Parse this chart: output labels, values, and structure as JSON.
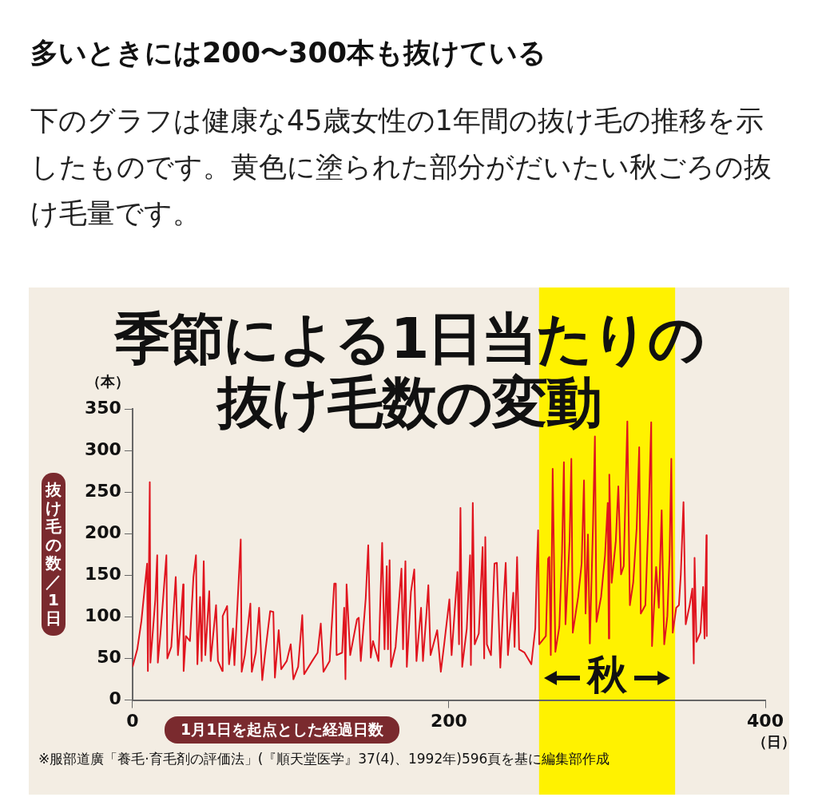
{
  "chart_data": {
    "type": "line",
    "title": "季節による1日当たりの抜け毛数の変動",
    "xlabel": "1月1日を起点とした経過日数",
    "ylabel": "抜け毛の数／1日",
    "annotations": [
      "多いときには200〜300本も抜けている",
      "下のグラフは健康な45歳女性の1年間の抜け毛の推移を示したものです。黄色に塗られた部分がだいたい秋ごろの抜け毛量です。",
      "（本）",
      "（日）",
      "※服部道廣「養毛·育毛剤の評価法」(『順天堂医学』37(4)、1992年)596頁を基に編集部作成"
    ],
    "xlim": [
      0,
      400
    ],
    "xticks": [
      0,
      200,
      400
    ],
    "ylim": [
      0,
      350
    ],
    "yticks": [
      0,
      50,
      100,
      150,
      200,
      250,
      300,
      350
    ],
    "grid": false,
    "legend": false,
    "marker": "none",
    "line_style": "solid",
    "bands": [
      {
        "axis": "x",
        "from": 257,
        "to": 343,
        "label": "秋",
        "color": "#fff200"
      }
    ],
    "x": [
      0,
      3,
      5.6,
      9.2,
      9.7,
      10.9,
      11.3,
      14.4,
      15.6,
      16,
      17.7,
      21.4,
      22,
      24.5,
      25.7,
      27.3,
      28.7,
      30.4,
      32,
      32.3,
      33.7,
      36.3,
      38.5,
      40.1,
      41,
      42.7,
      43.7,
      45,
      46,
      48.5,
      49.4,
      52.8,
      54,
      56.7,
      57,
      59.8,
      61,
      63.5,
      64.4,
      66.5,
      68.4,
      69,
      71,
      74.5,
      75.4,
      77.9,
      80,
      82,
      83.7,
      87,
      89,
      90,
      92.4,
      94,
      97.5,
      100,
      101.7,
      104.7,
      107.3,
      108.5,
      113.6,
      117,
      119,
      120.7,
      124.6,
      127.5,
      128.5,
      129,
      132.5,
      133.8,
      134.6,
      135.3,
      137.6,
      141.9,
      143,
      144.3,
      147.4,
      149,
      150.6,
      152,
      155.5,
      157.8,
      159.3,
      160.7,
      161.5,
      162.5,
      163.4,
      166.3,
      170,
      171,
      172.5,
      173.4,
      176,
      178.1,
      179.5,
      182.4,
      183.6,
      185.8,
      187,
      188.4,
      192.6,
      194.9,
      197,
      200.3,
      201.7,
      205.4,
      206.4,
      207.3,
      208.4,
      211.3,
      213.4,
      213.9,
      215.1,
      216.3,
      218.9,
      221.3,
      222.3,
      223,
      224,
      226.6,
      228.8,
      230.3,
      232.5,
      234.2,
      235.9,
      237.3,
      240.7,
      241.5,
      243.1,
      244.4,
      247.8,
      252.1,
      254.6,
      255.6,
      256.4,
      257.1,
      261.3,
      262.7,
      263.5,
      264.4,
      265.6,
      267.3,
      269.8,
      271.5,
      272.7,
      273.7,
      276.3,
      277.4,
      278.3,
      281.7,
      283.9,
      285.4,
      286.4,
      287.9,
      289.1,
      291.1,
      292.3,
      293.3,
      296.2,
      298.7,
      300.4,
      301.1,
      301.4,
      302.9,
      305.5,
      307.1,
      308.8,
      310.5,
      312.8,
      314.4,
      316.5,
      318.7,
      320.3,
      321.3,
      324.2,
      326.3,
      327.9,
      328.4,
      331,
      332.7,
      334.5,
      336.1,
      338.1,
      339.5,
      340.6,
      341.5,
      343.7,
      345.4,
      346.6,
      348.3,
      349.7,
      352.2,
      353.9,
      354.8,
      355.3,
      356.5,
      359,
      360.7,
      361.6,
      362.8,
      363
    ],
    "series": [
      {
        "color": "#e0141e",
        "values": [
          40,
          61,
          95,
          164,
          35,
          262,
          45,
          121,
          174,
          45,
          81,
          174,
          50,
          64,
          100,
          148,
          54,
          94,
          139,
          35,
          77,
          71,
          148,
          174,
          43,
          124,
          47,
          167,
          54,
          131,
          47,
          114,
          47,
          35,
          101,
          113,
          43,
          86,
          42,
          121,
          193,
          34,
          54,
          116,
          34,
          57,
          111,
          24,
          54,
          107,
          106,
          27,
          84,
          37,
          47,
          67,
          25,
          40,
          102,
          31,
          47,
          57,
          92,
          34,
          47,
          140,
          140,
          54,
          57,
          111,
          25,
          139,
          54,
          97,
          99,
          47,
          122,
          186,
          51,
          71,
          47,
          189,
          61,
          161,
          61,
          168,
          40,
          64,
          158,
          61,
          167,
          40,
          130,
          157,
          47,
          111,
          47,
          104,
          138,
          54,
          84,
          34,
          67,
          121,
          54,
          154,
          67,
          231,
          40,
          86,
          174,
          42,
          237,
          67,
          80,
          184,
          50,
          196,
          67,
          54,
          164,
          165,
          39,
          107,
          165,
          54,
          129,
          64,
          172,
          61,
          57,
          43,
          86,
          160,
          204,
          67,
          77,
          170,
          172,
          54,
          278,
          58,
          88,
          177,
          286,
          91,
          191,
          290,
          81,
          124,
          164,
          264,
          104,
          199,
          68,
          211,
          317,
          94,
          124,
          174,
          237,
          74,
          271,
          141,
          191,
          257,
          151,
          161,
          335,
          114,
          141,
          207,
          304,
          104,
          114,
          225,
          334,
          65,
          160,
          111,
          228,
          67,
          101,
          174,
          290,
          81,
          111,
          114,
          151,
          238,
          91,
          114,
          134,
          44,
          171,
          70,
          81,
          136,
          74,
          198,
          77
        ]
      }
    ]
  }
}
